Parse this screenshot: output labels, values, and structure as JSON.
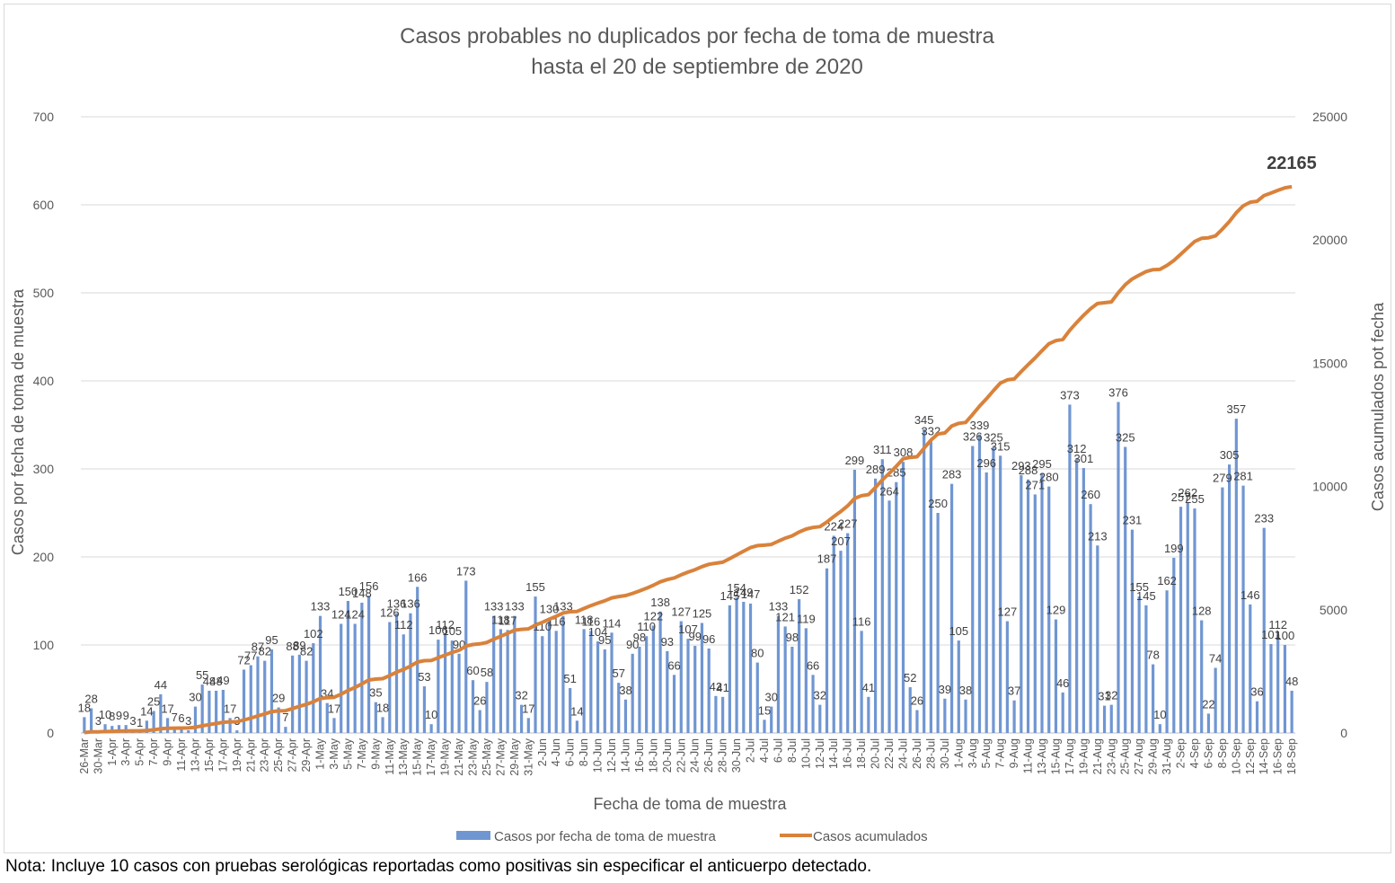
{
  "chart_data": {
    "type": "bar",
    "title_lines": [
      "Casos probables no duplicados por fecha de toma de muestra",
      "hasta el  20 de septiembre de 2020"
    ],
    "xlabel": "Fecha de toma de muestra",
    "ylabel": "Casos por fecha de toma de muestra",
    "y2label": "Casos acumulados pot fecha",
    "ylim": [
      0,
      700
    ],
    "y_ticks": [
      "0",
      "100",
      "200",
      "300",
      "400",
      "500",
      "600",
      "700"
    ],
    "y2lim": [
      0,
      25000
    ],
    "y2_ticks": [
      "0",
      "5000",
      "10000",
      "15000",
      "20000",
      "25000"
    ],
    "grid": true,
    "legend_position": "bottom",
    "x_tick_labels": [
      "26-Mar",
      "30-Mar",
      "1-Apr",
      "3-Apr",
      "5-Apr",
      "7-Apr",
      "9-Apr",
      "11-Apr",
      "13-Apr",
      "15-Apr",
      "17-Apr",
      "19-Apr",
      "21-Apr",
      "23-Apr",
      "25-Apr",
      "27-Apr",
      "29-Apr",
      "1-May",
      "3-May",
      "5-May",
      "7-May",
      "9-May",
      "11-May",
      "13-May",
      "15-May",
      "17-May",
      "19-May",
      "21-May",
      "23-May",
      "25-May",
      "27-May",
      "29-May",
      "31-May",
      "2-Jun",
      "4-Jun",
      "6-Jun",
      "8-Jun",
      "10-Jun",
      "12-Jun",
      "14-Jun",
      "16-Jun",
      "18-Jun",
      "20-Jun",
      "22-Jun",
      "24-Jun",
      "26-Jun",
      "28-Jun",
      "30-Jun",
      "2-Jul",
      "4-Jul",
      "6-Jul",
      "8-Jul",
      "10-Jul",
      "12-Jul",
      "14-Jul",
      "16-Jul",
      "18-Jul",
      "20-Jul",
      "22-Jul",
      "24-Jul",
      "26-Jul",
      "28-Jul",
      "30-Jul",
      "1-Aug",
      "3-Aug",
      "5-Aug",
      "7-Aug",
      "9-Aug",
      "11-Aug",
      "13-Aug",
      "15-Aug",
      "17-Aug",
      "19-Aug",
      "21-Aug",
      "23-Aug",
      "25-Aug",
      "27-Aug",
      "29-Aug",
      "31-Aug",
      "2-Sep",
      "4-Sep",
      "6-Sep",
      "8-Sep",
      "10-Sep",
      "12-Sep",
      "14-Sep",
      "16-Sep",
      "18-Sep"
    ],
    "series": [
      {
        "name": "Casos por fecha de toma de muestra",
        "type": "bar",
        "axis": "left",
        "color": "#7096d2",
        "values": [
          18,
          28,
          3,
          10,
          8,
          9,
          9,
          3,
          1,
          14,
          25,
          44,
          17,
          7,
          6,
          3,
          30,
          55,
          48,
          48,
          49,
          17,
          3,
          72,
          77,
          87,
          82,
          95,
          29,
          7,
          88,
          89,
          82,
          102,
          133,
          34,
          17,
          124,
          150,
          124,
          148,
          156,
          35,
          18,
          126,
          136,
          112,
          136,
          166,
          53,
          10,
          106,
          112,
          105,
          90,
          173,
          60,
          26,
          58,
          133,
          118,
          117,
          133,
          32,
          17,
          155,
          110,
          130,
          116,
          133,
          51,
          14,
          118,
          116,
          104,
          95,
          114,
          57,
          38,
          90,
          98,
          110,
          122,
          138,
          93,
          66,
          127,
          107,
          99,
          125,
          96,
          42,
          41,
          145,
          154,
          149,
          147,
          80,
          15,
          30,
          133,
          121,
          98,
          152,
          119,
          66,
          32,
          187,
          224,
          207,
          227,
          299,
          116,
          41,
          289,
          311,
          264,
          285,
          308,
          52,
          26,
          345,
          332,
          250,
          39,
          283,
          105,
          38,
          326,
          339,
          296,
          325,
          315,
          127,
          37,
          293,
          288,
          271,
          295,
          280,
          129,
          46,
          373,
          312,
          301,
          260,
          213,
          31,
          32,
          376,
          325,
          231,
          155,
          145,
          78,
          10,
          162,
          199,
          257,
          262,
          255,
          128,
          22,
          74,
          279,
          305,
          357,
          281,
          146,
          36,
          233,
          101,
          112,
          100,
          48
        ]
      },
      {
        "name": "Casos acumulados",
        "type": "line",
        "axis": "right",
        "color": "#d9823b",
        "final_value": 22165
      }
    ]
  },
  "final_label": "22165",
  "legend": [
    {
      "label": "Casos por fecha de toma de muestra",
      "color": "#7096d2"
    },
    {
      "label": "Casos acumulados",
      "color": "#d9823b"
    }
  ],
  "note": "Nota: Incluye 10 casos con pruebas serológicas reportadas como positivas sin especificar el anticuerpo detectado."
}
